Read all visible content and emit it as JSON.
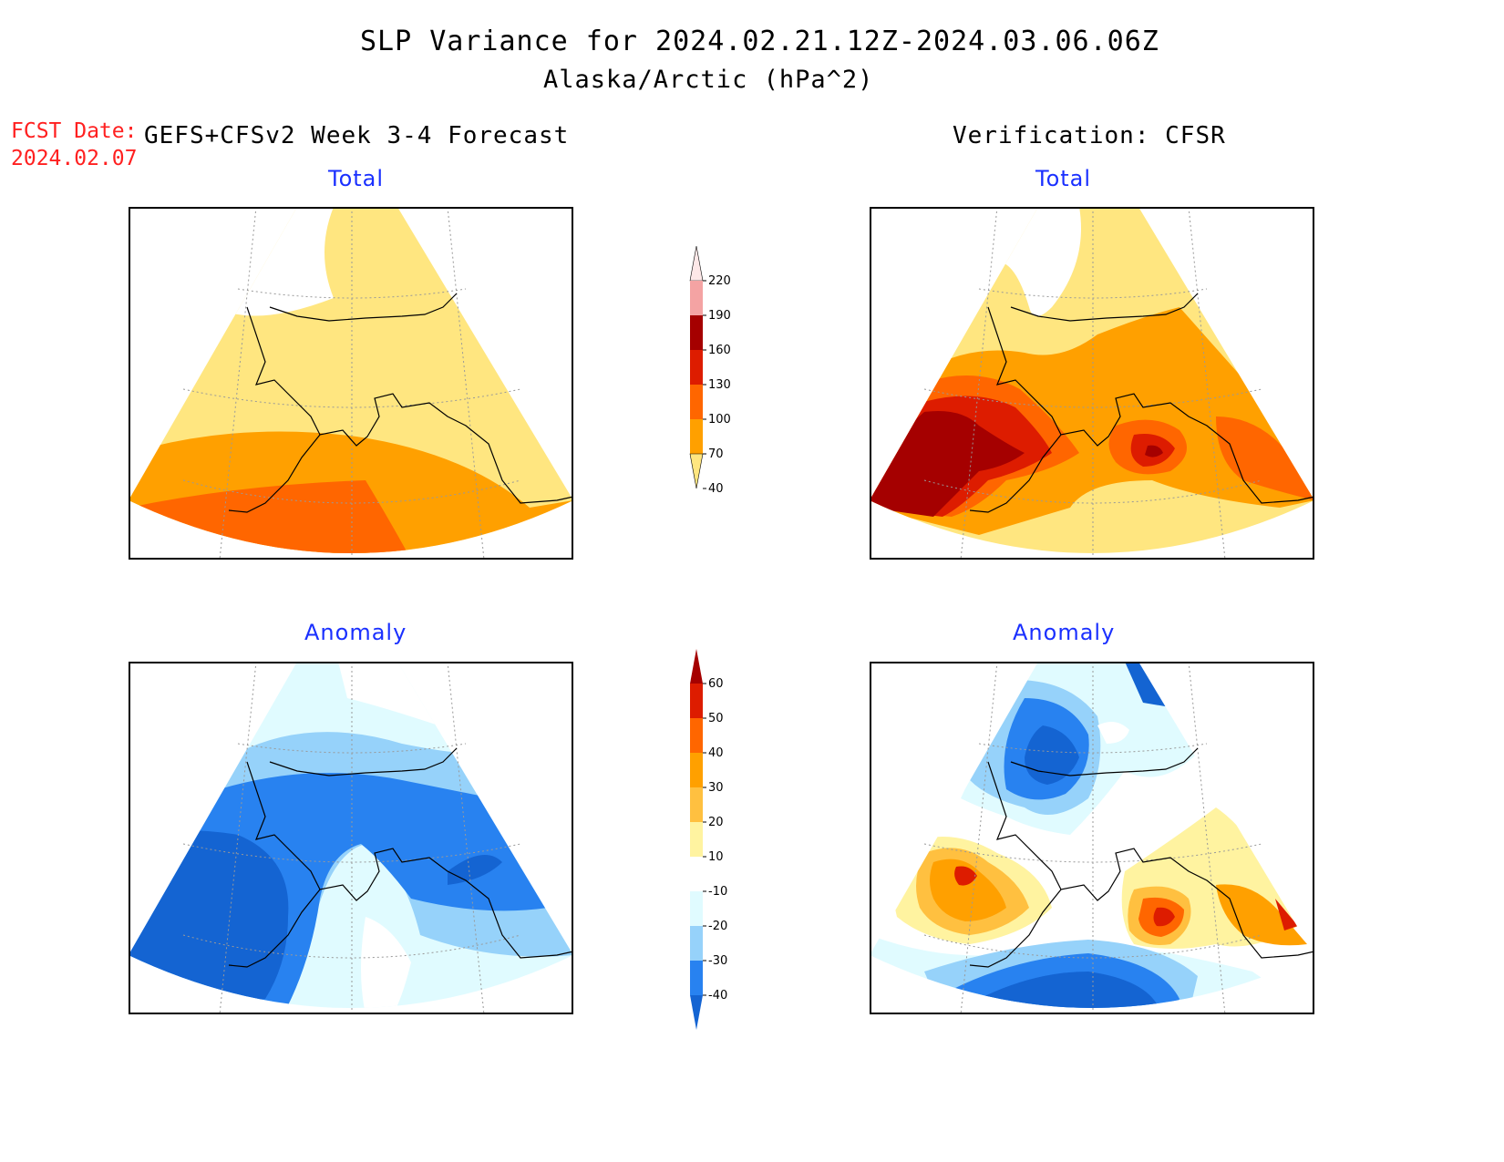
{
  "header": {
    "title": "SLP Variance for 2024.02.21.12Z-2024.03.06.06Z",
    "subtitle": "Alaska/Arctic (hPa^2)"
  },
  "forecast": {
    "date_label": "FCST Date:",
    "date_value": "2024.02.07",
    "column_heading": "GEFS+CFSv2 Week 3-4 Forecast"
  },
  "verification": {
    "column_heading": "Verification: CFSR"
  },
  "panels": {
    "forecast_total": "Total",
    "verif_total": "Total",
    "forecast_anomaly": "Anomaly",
    "verif_anomaly": "Anomaly"
  },
  "colorbars": {
    "total": {
      "levels": [
        "220",
        "190",
        "160",
        "130",
        "100",
        "70",
        "40"
      ],
      "colors": [
        "#fde8e8",
        "#f4a3a3",
        "#a50000",
        "#dd1c00",
        "#ff6600",
        "#ffa000",
        "#ffe680"
      ]
    },
    "anomaly": {
      "levels": [
        "60",
        "50",
        "40",
        "30",
        "20",
        "10",
        "-10",
        "-20",
        "-30",
        "-40"
      ],
      "colors": [
        "#a50000",
        "#dd1c00",
        "#ff6600",
        "#ffa000",
        "#ffc040",
        "#fff3a0",
        "#ffffff",
        "#e0fbff",
        "#96d2fa",
        "#2882f0",
        "#1464d2"
      ]
    }
  },
  "palette": {
    "total": {
      "c40": "#ffe680",
      "c70": "#ffa000",
      "c100": "#ff6600",
      "c130": "#dd1c00",
      "c160": "#a50000"
    },
    "anomaly": {
      "n10": "#e0fbff",
      "n20": "#96d2fa",
      "n30": "#2882f0",
      "n40": "#1464d2",
      "p10": "#fff3a0",
      "p20": "#ffc040",
      "p30": "#ffa000",
      "p40": "#ff6600",
      "p50": "#dd1c00"
    },
    "title_blue": "#1a30ff",
    "fcst_red": "#ff2020"
  }
}
